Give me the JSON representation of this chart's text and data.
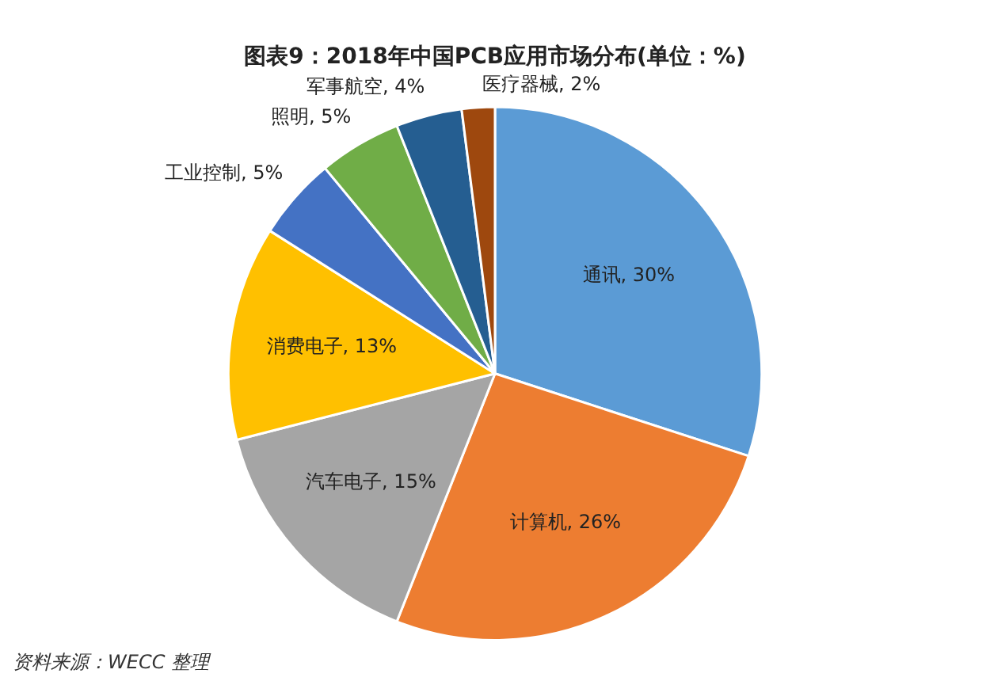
{
  "chart_data": {
    "type": "pie",
    "title": "图表9：2018年中国PCB应用市场分布(单位：%)",
    "categories": [
      "通讯",
      "计算机",
      "汽车电子",
      "消费电子",
      "工业控制",
      "照明",
      "军事航空",
      "医疗器械"
    ],
    "values": [
      30,
      26,
      15,
      13,
      5,
      5,
      4,
      2
    ],
    "value_labels": [
      "30%",
      "26%",
      "15%",
      "13%",
      "5%",
      "5%",
      "4%",
      "2%"
    ],
    "colors": [
      "#5b9bd5",
      "#ed7d31",
      "#a5a5a5",
      "#ffc000",
      "#4472c4",
      "#70ad47",
      "#255e91",
      "#9e480e"
    ],
    "legend": false,
    "annotations": [
      "资料来源：WECC 整理"
    ]
  }
}
